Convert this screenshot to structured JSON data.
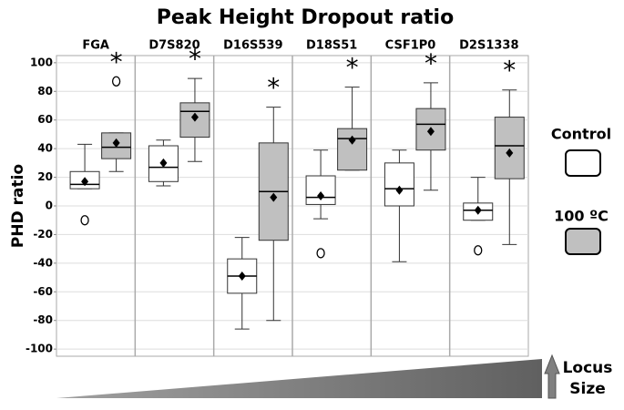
{
  "chart_data": {
    "type": "boxplot",
    "title": "Peak Height Dropout ratio",
    "y_label": "PHD ratio",
    "categories": [
      "FGA",
      "D7S820",
      "D16S539",
      "D18S51",
      "CSF1P0",
      "D2S1338"
    ],
    "series": [
      {
        "name": "Control",
        "color": "#ffffff",
        "boxes": [
          {
            "whislo": 12,
            "q1": 12,
            "med": 15,
            "q3": 24,
            "whishi": 43,
            "mean": 17,
            "fliers": [
              -10
            ]
          },
          {
            "whislo": 14,
            "q1": 17,
            "med": 27,
            "q3": 42,
            "whishi": 46,
            "mean": 30,
            "fliers": []
          },
          {
            "whislo": -86,
            "q1": -61,
            "med": -49,
            "q3": -37,
            "whishi": -22,
            "mean": -49,
            "fliers": []
          },
          {
            "whislo": -9,
            "q1": 1,
            "med": 6,
            "q3": 21,
            "whishi": 39,
            "mean": 7,
            "fliers": [
              -33
            ]
          },
          {
            "whislo": -39,
            "q1": 0,
            "med": 12,
            "q3": 30,
            "whishi": 39,
            "mean": 11,
            "fliers": []
          },
          {
            "whislo": -10,
            "q1": -10,
            "med": -3,
            "q3": 2,
            "whishi": 20,
            "mean": -3,
            "fliers": [
              -31
            ]
          }
        ]
      },
      {
        "name": "100 ºC",
        "color": "#c0c0c0",
        "boxes": [
          {
            "whislo": 24,
            "q1": 33,
            "med": 41,
            "q3": 51,
            "whishi": 51,
            "mean": 44,
            "fliers": [
              87
            ]
          },
          {
            "whislo": 31,
            "q1": 48,
            "med": 66,
            "q3": 72,
            "whishi": 89,
            "mean": 62,
            "fliers": []
          },
          {
            "whislo": -80,
            "q1": -24,
            "med": 10,
            "q3": 44,
            "whishi": 69,
            "mean": 6,
            "fliers": []
          },
          {
            "whislo": 25,
            "q1": 25,
            "med": 47,
            "q3": 54,
            "whishi": 83,
            "mean": 46,
            "fliers": []
          },
          {
            "whislo": 11,
            "q1": 39,
            "med": 57,
            "q3": 68,
            "whishi": 86,
            "mean": 52,
            "fliers": []
          },
          {
            "whislo": -27,
            "q1": 19,
            "med": 42,
            "q3": 62,
            "whishi": 81,
            "mean": 37,
            "fliers": []
          }
        ]
      }
    ],
    "significance_marks": [
      "*",
      "*",
      "*",
      "*",
      "*",
      "*"
    ],
    "ylim": [
      -105,
      105
    ],
    "yticks": [
      -100,
      -80,
      -60,
      -40,
      -20,
      0,
      20,
      40,
      60,
      80,
      100
    ],
    "grid": true,
    "locus_size_label": [
      "Locus",
      "Size"
    ]
  }
}
